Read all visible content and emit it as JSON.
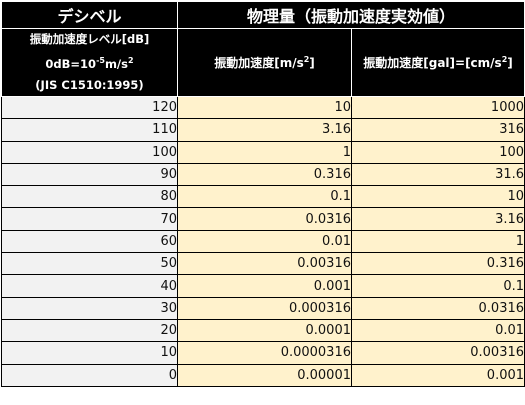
{
  "header": {
    "decibel": "デシベル",
    "physical": "物理量（振動加速度実効値）",
    "level_line1": "振動加速度レベル[dB]",
    "level_line2_prefix": "0dB=10",
    "level_line2_exp": "-5",
    "level_line2_unit": "m/s",
    "level_line2_unit_exp": "2",
    "level_line3": "(JIS C1510:1995)",
    "col_ms2_label": "振動加速度[m/s",
    "col_ms2_exp": "2",
    "col_ms2_close": "]",
    "col_gal_label": "振動加速度[gal]=[cm/s",
    "col_gal_exp": "2",
    "col_gal_close": "]"
  },
  "rows": [
    {
      "db": "120",
      "ms2": "10",
      "gal": "1000"
    },
    {
      "db": "110",
      "ms2": "3.16",
      "gal": "316"
    },
    {
      "db": "100",
      "ms2": "1",
      "gal": "100"
    },
    {
      "db": "90",
      "ms2": "0.316",
      "gal": "31.6"
    },
    {
      "db": "80",
      "ms2": "0.1",
      "gal": "10"
    },
    {
      "db": "70",
      "ms2": "0.0316",
      "gal": "3.16"
    },
    {
      "db": "60",
      "ms2": "0.01",
      "gal": "1"
    },
    {
      "db": "50",
      "ms2": "0.00316",
      "gal": "0.316"
    },
    {
      "db": "40",
      "ms2": "0.001",
      "gal": "0.1"
    },
    {
      "db": "30",
      "ms2": "0.000316",
      "gal": "0.0316"
    },
    {
      "db": "20",
      "ms2": "0.0001",
      "gal": "0.01"
    },
    {
      "db": "10",
      "ms2": "0.0000316",
      "gal": "0.00316"
    },
    {
      "db": "0",
      "ms2": "0.00001",
      "gal": "0.001"
    }
  ],
  "colors": {
    "header_bg": "#000000",
    "header_text": "#ffffff",
    "db_cell_bg": "#f2f2f2",
    "value_cell_bg": "#fff2cc"
  }
}
